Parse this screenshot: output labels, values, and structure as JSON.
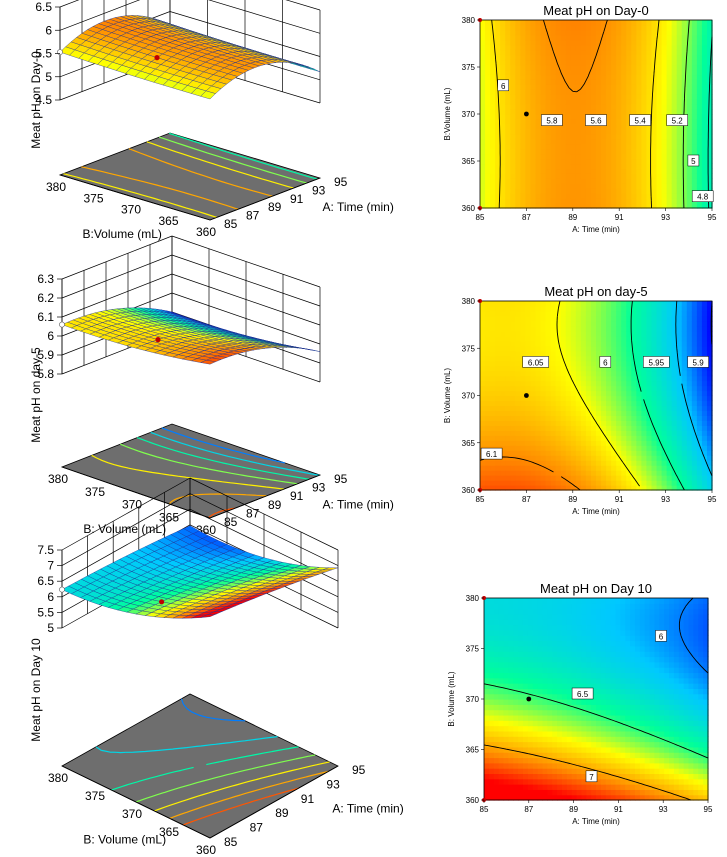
{
  "colors": {
    "floor": "#6e6e6e",
    "mesh": "#1a2a8c",
    "contour_line": "#000000",
    "design_point": "#c00000",
    "scale": [
      "#0000ff",
      "#00c8ff",
      "#00ff9a",
      "#ffff00",
      "#ff8a00",
      "#ff0000"
    ]
  },
  "chart_data": [
    {
      "type": "surface3d",
      "title": "",
      "zlabel": "Meat pH on Day-0",
      "xlabel": "A: Time (min)",
      "ylabel": "B:Volume (mL)",
      "x_ticks": [
        "85",
        "87",
        "89",
        "91",
        "93",
        "95"
      ],
      "y_ticks": [
        "360",
        "365",
        "370",
        "375",
        "380"
      ],
      "z_ticks": [
        "4.5",
        "5",
        "5.5",
        "6",
        "6.5"
      ],
      "xlim": [
        85,
        95
      ],
      "ylim": [
        360,
        380
      ],
      "zlim": [
        4.5,
        6.5
      ],
      "model": {
        "b0": 5.78,
        "a1": -0.16,
        "a2": -0.45,
        "b1": 0.02,
        "b2": 0.02,
        "c": 0.0
      },
      "color_range": [
        4.7,
        6.1
      ]
    },
    {
      "type": "contour",
      "title": "Meat pH on Day-0",
      "xlabel": "A: Time (min)",
      "ylabel": "B:Volume (mL)",
      "x_ticks": [
        "85",
        "87",
        "89",
        "91",
        "93",
        "95"
      ],
      "y_ticks": [
        "360",
        "365",
        "370",
        "375",
        "380"
      ],
      "xlim": [
        85,
        95
      ],
      "ylim": [
        360,
        380
      ],
      "contour_levels": [
        4.8,
        5,
        5.2,
        5.4,
        5.6,
        5.8,
        6
      ],
      "contour_labels": [
        {
          "text": "6",
          "x": 86.0,
          "y": 373
        },
        {
          "text": "5.8",
          "x": 88.1,
          "y": 369.3
        },
        {
          "text": "5.6",
          "x": 90.0,
          "y": 369.3
        },
        {
          "text": "5.4",
          "x": 91.9,
          "y": 369.3
        },
        {
          "text": "5.2",
          "x": 93.5,
          "y": 369.3
        },
        {
          "text": "5",
          "x": 94.2,
          "y": 365
        },
        {
          "text": "4.8",
          "x": 94.6,
          "y": 361.2
        }
      ],
      "design_point": {
        "x": 87,
        "y": 370
      },
      "model": {
        "b0": 5.78,
        "a1": -0.16,
        "a2": -0.45,
        "b1": 0.02,
        "b2": 0.02,
        "c": 0.0
      },
      "color_range": [
        4.7,
        6.1
      ]
    },
    {
      "type": "surface3d",
      "title": "",
      "zlabel": "Meat pH on day-5",
      "xlabel": "A: Time (min)",
      "ylabel": "B: Volume (mL)",
      "x_ticks": [
        "85",
        "87",
        "89",
        "91",
        "93",
        "95"
      ],
      "y_ticks": [
        "360",
        "365",
        "370",
        "375",
        "380"
      ],
      "z_ticks": [
        "5.8",
        "5.9",
        "6",
        "6.1",
        "6.2",
        "6.3"
      ],
      "xlim": [
        85,
        95
      ],
      "ylim": [
        360,
        380
      ],
      "zlim": [
        5.8,
        6.3
      ],
      "model": {
        "b0": 6.04,
        "a1": -0.08,
        "a2": -0.05,
        "b1": -0.03,
        "b2": 0.02,
        "c": 0.0
      },
      "color_range": [
        5.9,
        6.15
      ]
    },
    {
      "type": "contour",
      "title": "Meat pH on day-5",
      "xlabel": "A: Time (min)",
      "ylabel": "B: Volume (mL)",
      "x_ticks": [
        "85",
        "87",
        "89",
        "91",
        "93",
        "95"
      ],
      "y_ticks": [
        "360",
        "365",
        "370",
        "375",
        "380"
      ],
      "xlim": [
        85,
        95
      ],
      "ylim": [
        360,
        380
      ],
      "contour_levels": [
        5.9,
        5.95,
        6,
        6.05,
        6.1
      ],
      "contour_labels": [
        {
          "text": "6.05",
          "x": 87.4,
          "y": 373.5
        },
        {
          "text": "6",
          "x": 90.4,
          "y": 373.5
        },
        {
          "text": "5.95",
          "x": 92.6,
          "y": 373.5
        },
        {
          "text": "5.9",
          "x": 94.4,
          "y": 373.5
        },
        {
          "text": "6.1",
          "x": 85.5,
          "y": 363.8
        }
      ],
      "design_point": {
        "x": 87,
        "y": 370
      },
      "model": {
        "b0": 6.04,
        "a1": -0.08,
        "a2": -0.05,
        "b1": -0.03,
        "b2": 0.02,
        "c": 0.0
      },
      "color_range": [
        5.9,
        6.15
      ]
    },
    {
      "type": "surface3d",
      "title": "",
      "zlabel": "Meat pH on Day 10",
      "xlabel": "A: Time (min)",
      "ylabel": "B: Volume (mL)",
      "x_ticks": [
        "85",
        "87",
        "89",
        "91",
        "93",
        "95"
      ],
      "y_ticks": [
        "360",
        "365",
        "370",
        "375",
        "380"
      ],
      "z_ticks": [
        "5",
        "5.5",
        "6",
        "6.5",
        "7",
        "7.5"
      ],
      "xlim": [
        85,
        95
      ],
      "ylim": [
        360,
        380
      ],
      "zlim": [
        5,
        7.5
      ],
      "model": {
        "b0": 6.4,
        "a1": -0.25,
        "a2": -0.05,
        "b1": -0.6,
        "b2": 0.35,
        "c": 0.12
      },
      "color_range": [
        5.8,
        7.4
      ]
    },
    {
      "type": "contour",
      "title": "Meat pH on Day 10",
      "xlabel": "A: Time (min)",
      "ylabel": "B: Volume (mL)",
      "x_ticks": [
        "85",
        "87",
        "89",
        "91",
        "93",
        "95"
      ],
      "y_ticks": [
        "360",
        "365",
        "370",
        "375",
        "380"
      ],
      "xlim": [
        85,
        95
      ],
      "ylim": [
        360,
        380
      ],
      "contour_levels": [
        6,
        6.5,
        7
      ],
      "contour_labels": [
        {
          "text": "6",
          "x": 92.9,
          "y": 376.2
        },
        {
          "text": "6.5",
          "x": 89.4,
          "y": 370.5
        },
        {
          "text": "7",
          "x": 89.8,
          "y": 362.3
        }
      ],
      "design_point": {
        "x": 87,
        "y": 370
      },
      "model": {
        "b0": 6.4,
        "a1": -0.25,
        "a2": -0.05,
        "b1": -0.6,
        "b2": 0.35,
        "c": 0.12
      },
      "color_range": [
        5.8,
        7.4
      ]
    }
  ]
}
